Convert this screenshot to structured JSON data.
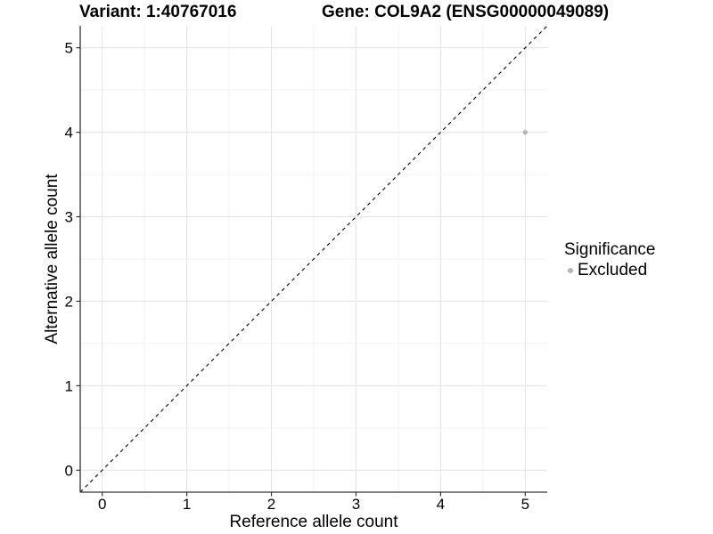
{
  "titles": {
    "variant": "Variant: 1:40767016",
    "gene": "Gene: COL9A2 (ENSG00000049089)"
  },
  "legend": {
    "title": "Significance",
    "items": [
      {
        "label": "Excluded",
        "color": "#b5b5b5"
      }
    ]
  },
  "chart_data": {
    "type": "scatter",
    "title": "Variant: 1:40767016",
    "subtitle": "Gene: COL9A2 (ENSG00000049089)",
    "xlabel": "Reference allele count",
    "ylabel": "Alternative allele count",
    "xlim": [
      -0.26,
      5.26
    ],
    "ylim": [
      -0.26,
      5.26
    ],
    "xticks": [
      0,
      1,
      2,
      3,
      4,
      5
    ],
    "yticks": [
      0,
      1,
      2,
      3,
      4,
      5
    ],
    "minor_ticks": [
      0.5,
      1.5,
      2.5,
      3.5,
      4.5
    ],
    "grid": "major+minor",
    "legend_position": "right",
    "series": [
      {
        "name": "Excluded",
        "color": "#b5b5b5",
        "points": [
          {
            "x": 5,
            "y": 4
          }
        ]
      }
    ],
    "reference_line": {
      "type": "identity",
      "slope": 1,
      "intercept": 0,
      "style": "dashed",
      "color": "#000000"
    },
    "style": {
      "background": "#ffffff",
      "grid_major": "#e5e5e5",
      "grid_minor": "#f2f2f2",
      "axis_color": "#333333",
      "tick_label_color": "#000000",
      "point_color": "#b5b5b5"
    }
  }
}
